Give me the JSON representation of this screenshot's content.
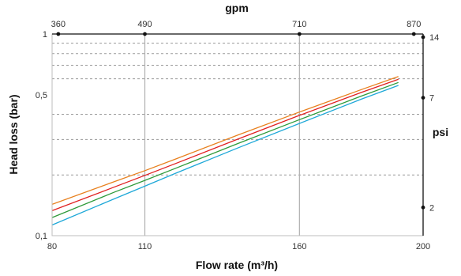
{
  "chart_data": {
    "type": "line",
    "xlabel": "Flow rate  (m³/h)",
    "ylabel": "Head loss (bar)",
    "x2label": "gpm",
    "y2label": "psi",
    "x_ticks": [
      {
        "value": 80,
        "label": "80"
      },
      {
        "value": 110,
        "label": "110"
      },
      {
        "value": 160,
        "label": "160"
      },
      {
        "value": 200,
        "label": "200"
      }
    ],
    "x2_ticks": [
      {
        "value": 82,
        "label": "360"
      },
      {
        "value": 110,
        "label": "490"
      },
      {
        "value": 160,
        "label": "710"
      },
      {
        "value": 197,
        "label": "870"
      }
    ],
    "y_ticks": [
      {
        "value": 0.1,
        "label": "0,1"
      },
      {
        "value": 0.5,
        "label": "0,5"
      },
      {
        "value": 1,
        "label": "1"
      }
    ],
    "y2_ticks": [
      {
        "value": 0.138,
        "label": "2"
      },
      {
        "value": 0.483,
        "label": "7"
      },
      {
        "value": 0.965,
        "label": "14"
      }
    ],
    "y_scale": "log",
    "xlim": [
      80,
      200
    ],
    "ylim": [
      0.1,
      1
    ],
    "vertical_gridlines_at": [
      110,
      160
    ],
    "horizontal_gridlines_at": [
      0.9,
      0.8,
      0.7,
      0.6,
      0.4,
      0.3,
      0.2
    ],
    "series": [
      {
        "color": "#e8801e",
        "x": [
          80,
          100,
          110,
          120,
          140,
          160,
          180,
          192
        ],
        "y": [
          0.143,
          0.185,
          0.21,
          0.24,
          0.315,
          0.41,
          0.53,
          0.615
        ]
      },
      {
        "color": "#e02020",
        "x": [
          80,
          100,
          110,
          120,
          140,
          160,
          180,
          192
        ],
        "y": [
          0.133,
          0.174,
          0.199,
          0.228,
          0.301,
          0.395,
          0.513,
          0.596
        ]
      },
      {
        "color": "#2e9a3a",
        "x": [
          80,
          100,
          110,
          120,
          140,
          160,
          180,
          192
        ],
        "y": [
          0.123,
          0.164,
          0.188,
          0.216,
          0.286,
          0.376,
          0.492,
          0.575
        ]
      },
      {
        "color": "#1ea8d8",
        "x": [
          80,
          100,
          110,
          120,
          140,
          160,
          180,
          192
        ],
        "y": [
          0.113,
          0.152,
          0.176,
          0.204,
          0.272,
          0.36,
          0.475,
          0.556
        ]
      }
    ]
  }
}
